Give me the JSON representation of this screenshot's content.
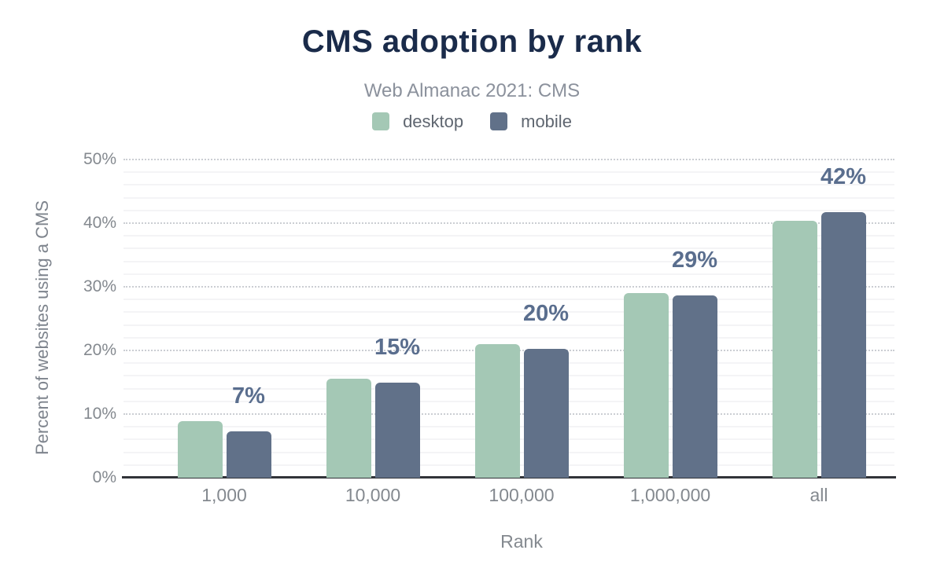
{
  "header": {
    "title": "CMS adoption by rank",
    "subtitle": "Web Almanac 2021: CMS"
  },
  "colors": {
    "title_text": "#1a2b4a",
    "subtitle_text": "#8b919c",
    "axis_text": "#84898f",
    "data_label_text": "#5a6e8e",
    "desktop_series": "#a4c8b5",
    "mobile_series": "#617189",
    "grid_major": "#cbced3",
    "grid_minor": "#f4f4f6",
    "axis_line": "#313338"
  },
  "chart_data": {
    "type": "bar",
    "title": "CMS adoption by rank",
    "subtitle": "Web Almanac 2021: CMS",
    "categories": [
      "1,000",
      "10,000",
      "100,000",
      "1,000,000",
      "all"
    ],
    "series": [
      {
        "name": "desktop",
        "color": "#a4c8b5",
        "values": [
          8.9,
          15.6,
          21.0,
          29.0,
          40.4
        ]
      },
      {
        "name": "mobile",
        "color": "#617189",
        "values": [
          7.3,
          14.9,
          20.2,
          28.6,
          41.7
        ]
      }
    ],
    "data_labels": [
      "7%",
      "15%",
      "20%",
      "29%",
      "42%"
    ],
    "data_labels_follow_series": "mobile",
    "xlabel": "Rank",
    "ylabel": "Percent of websites using a CMS",
    "y_ticks": [
      "0%",
      "10%",
      "20%",
      "30%",
      "40%",
      "50%"
    ],
    "ylim": [
      0,
      50
    ],
    "grid": {
      "major_step": 10,
      "minor_step": 2
    },
    "legend_position": "top"
  }
}
